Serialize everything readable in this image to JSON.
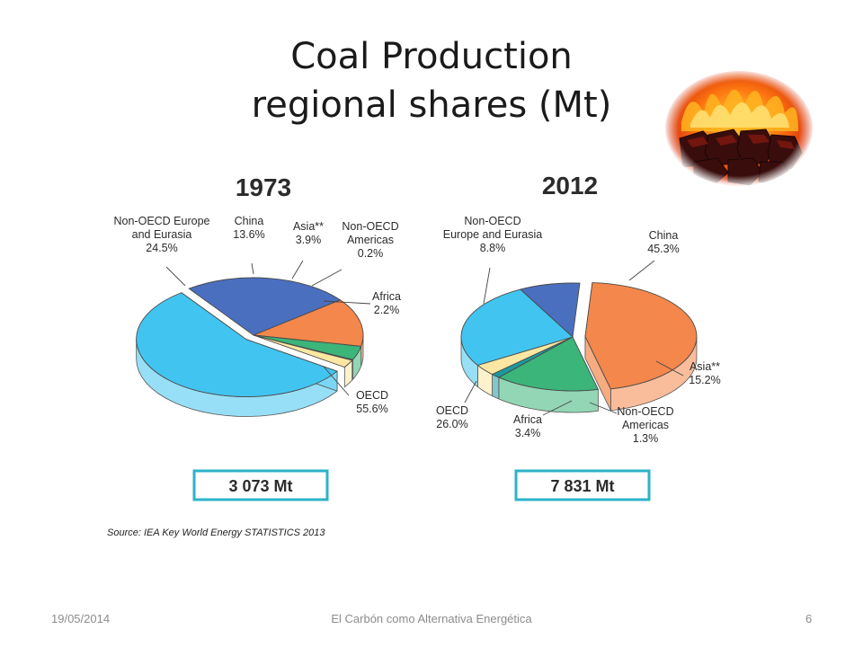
{
  "slide": {
    "title_line1": "Coal Production",
    "title_line2": "regional shares  (Mt)",
    "source": "Source: IEA Key World Energy STATISTICS 2013",
    "footer_date": "19/05/2014",
    "footer_center": "El Carbón como Alternativa Energética",
    "page_number": "6"
  },
  "chart_data": [
    {
      "type": "pie",
      "title": "1973",
      "total": "3 073 Mt",
      "slices": [
        {
          "label": [
            "Non-OECD Europe",
            "and Eurasia"
          ],
          "value_label": "24.5%",
          "value": 24.5,
          "color": "#4a6fbf"
        },
        {
          "label": [
            "China"
          ],
          "value_label": "13.6%",
          "value": 13.6,
          "color": "#f4874b"
        },
        {
          "label": [
            "Asia**"
          ],
          "value_label": "3.9%",
          "value": 3.9,
          "color": "#3bb579"
        },
        {
          "label": [
            "Non-OECD",
            "Americas"
          ],
          "value_label": "0.2%",
          "value": 0.2,
          "color": "#1b9aa0"
        },
        {
          "label": [
            "Africa"
          ],
          "value_label": "2.2%",
          "value": 2.2,
          "color": "#fbe7a1"
        },
        {
          "label": [
            "OECD"
          ],
          "value_label": "55.6%",
          "value": 55.6,
          "color": "#42c4f0"
        }
      ]
    },
    {
      "type": "pie",
      "title": "2012",
      "total": "7 831 Mt",
      "slices": [
        {
          "label": [
            "Non-OECD",
            "Europe and Eurasia"
          ],
          "value_label": "8.8%",
          "value": 8.8,
          "color": "#4a6fbf"
        },
        {
          "label": [
            "China"
          ],
          "value_label": "45.3%",
          "value": 45.3,
          "color": "#f4874b"
        },
        {
          "label": [
            "Asia**"
          ],
          "value_label": "15.2%",
          "value": 15.2,
          "color": "#3bb579"
        },
        {
          "label": [
            "Non-OECD",
            "Americas"
          ],
          "value_label": "1.3%",
          "value": 1.3,
          "color": "#1b9aa0"
        },
        {
          "label": [
            "Africa"
          ],
          "value_label": "3.4%",
          "value": 3.4,
          "color": "#fbe7a1"
        },
        {
          "label": [
            "OECD"
          ],
          "value_label": "26.0%",
          "value": 26.0,
          "color": "#42c4f0"
        }
      ]
    }
  ]
}
